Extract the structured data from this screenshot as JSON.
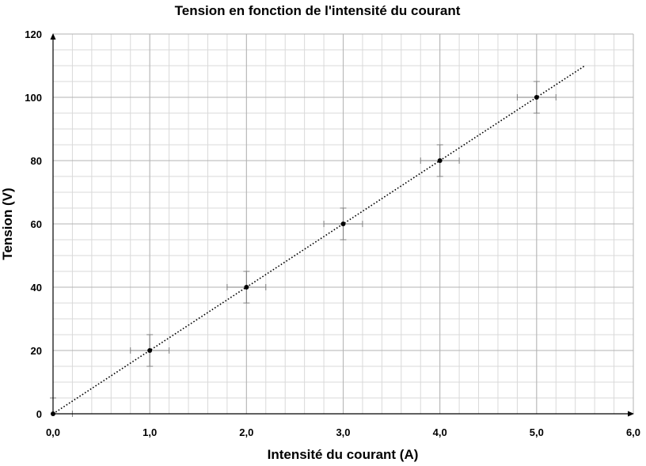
{
  "chart_data": {
    "type": "scatter",
    "title": "Tension en fonction de l'intensité du courant",
    "xlabel": "Intensité du courant (A)",
    "ylabel": "Tension (V)",
    "xlim": [
      0,
      6
    ],
    "ylim": [
      0,
      120
    ],
    "x_ticks": [
      0,
      1,
      2,
      3,
      4,
      5,
      6
    ],
    "x_tick_labels": [
      "0,0",
      "1,0",
      "2,0",
      "3,0",
      "4,0",
      "5,0",
      "6,0"
    ],
    "y_ticks": [
      0,
      20,
      40,
      60,
      80,
      100,
      120
    ],
    "y_tick_labels": [
      "0",
      "20",
      "40",
      "60",
      "80",
      "100",
      "120"
    ],
    "grid": true,
    "grid_minor_x": 0.2,
    "grid_minor_y": 5,
    "series": [
      {
        "x": [
          0,
          1,
          2,
          3,
          4,
          5
        ],
        "y": [
          0,
          20,
          40,
          60,
          80,
          100
        ],
        "x_error": [
          0.2,
          0.2,
          0.2,
          0.2,
          0.2,
          0.2
        ],
        "y_error": [
          5,
          5,
          5,
          5,
          5,
          5
        ],
        "marker_color": "#000000"
      }
    ],
    "trendline": {
      "style": "dotted",
      "x": [
        0,
        5.5
      ],
      "y": [
        0,
        110
      ],
      "color": "#000000"
    },
    "colors": {
      "major_grid": "#b3b3b3",
      "minor_grid": "#d9d9d9",
      "error_bar": "#7f7f7f",
      "axis": "#000000"
    }
  }
}
